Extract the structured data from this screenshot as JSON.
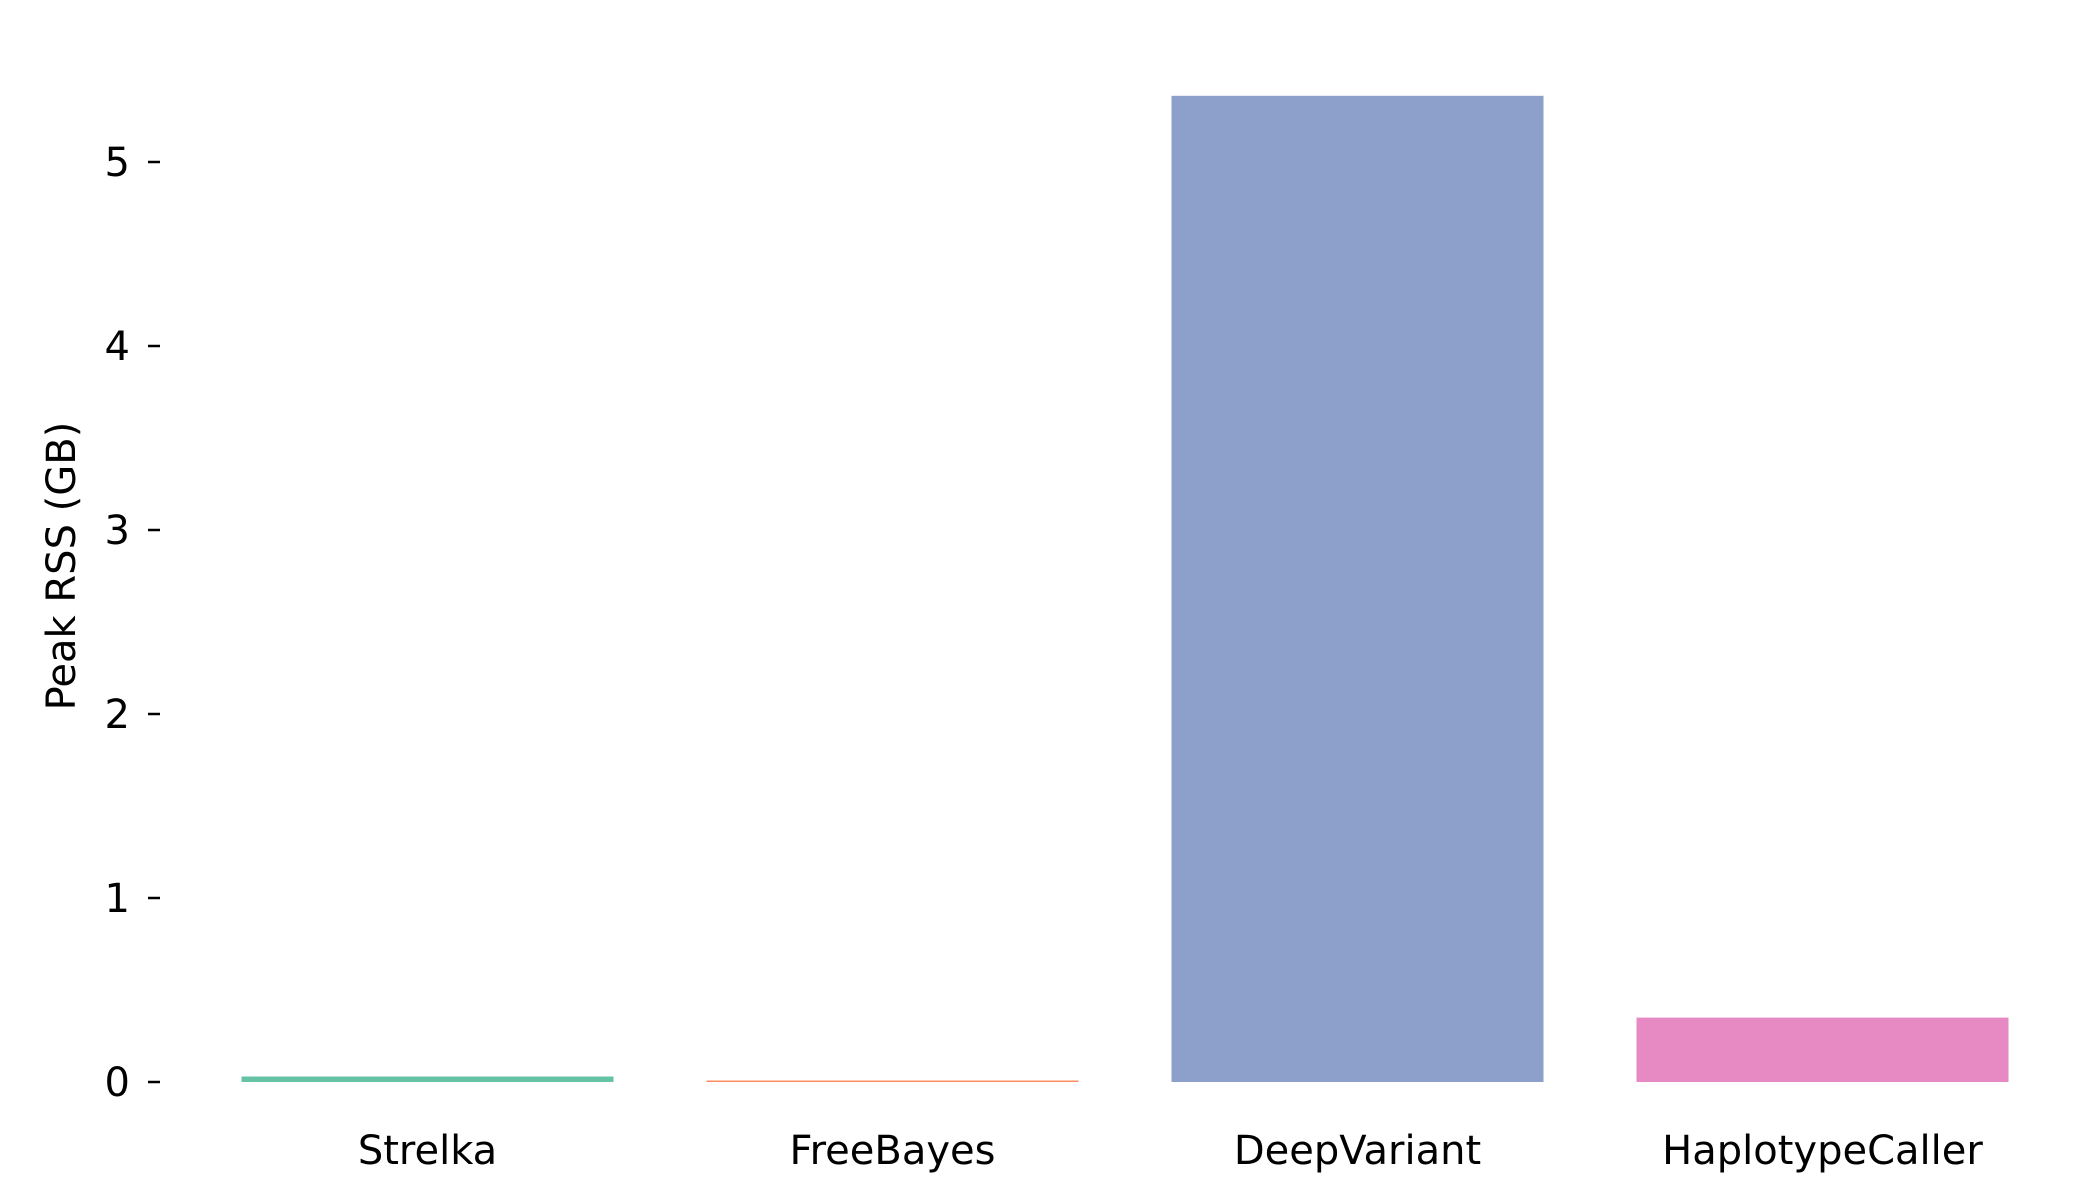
{
  "chart_data": {
    "type": "bar",
    "title": "",
    "xlabel": "",
    "ylabel": "Peak RSS (GB)",
    "categories": [
      "Strelka",
      "FreeBayes",
      "DeepVariant",
      "HaplotypeCaller"
    ],
    "values": [
      0.03,
      0.005,
      5.36,
      0.35
    ],
    "colors": [
      "#66c2a5",
      "#fc8d62",
      "#8da0cb",
      "#e78ac3"
    ],
    "yticks": [
      0,
      1,
      2,
      3,
      4,
      5
    ],
    "ylim": [
      0,
      5.36
    ],
    "grid": false,
    "legend": "none"
  }
}
